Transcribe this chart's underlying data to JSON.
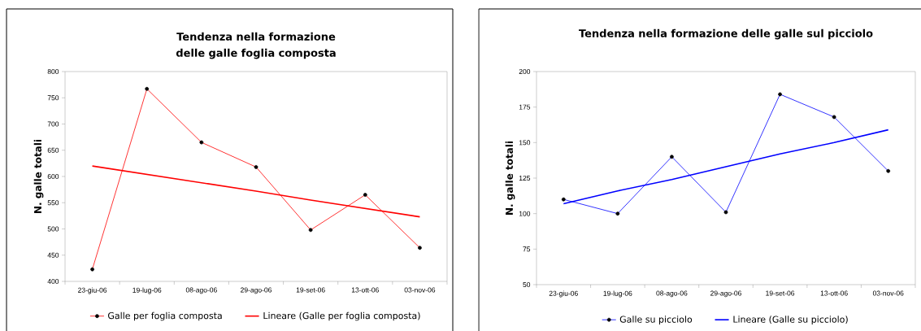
{
  "chart_data": [
    {
      "type": "line",
      "title": "Tendenza nella formazione delle galle foglia composta",
      "ylabel": "N. galle totali",
      "categories": [
        "23-giu-06",
        "19-lug-06",
        "08-ago-06",
        "29-ago-06",
        "19-set-06",
        "13-ott-06",
        "03-nov-06"
      ],
      "series": [
        {
          "name": "Galle per foglia composta",
          "color": "#ff0000",
          "marker": "circle",
          "values": [
            423,
            767,
            665,
            618,
            498,
            565,
            464
          ]
        },
        {
          "name": "Lineare (Galle per foglia composta)",
          "color": "#ff0000",
          "marker": "none",
          "values": [
            620,
            604,
            588,
            572,
            555,
            539,
            523
          ]
        }
      ],
      "ylim": [
        400,
        800
      ],
      "yticks": [
        400,
        450,
        500,
        550,
        600,
        650,
        700,
        750,
        800
      ],
      "legend": "bottom"
    },
    {
      "type": "line",
      "title": "Tendenza nella formazione delle galle sul picciolo",
      "ylabel": "N. galle totali",
      "categories": [
        "23-giu-06",
        "19-lug-06",
        "08-ago-06",
        "29-ago-06",
        "19-set-06",
        "13-ott-06",
        "03-nov-06"
      ],
      "series": [
        {
          "name": "Galle su picciolo",
          "color": "#0000ff",
          "marker": "circle",
          "values": [
            110,
            100,
            140,
            101,
            184,
            168,
            130
          ]
        },
        {
          "name": "Lineare (Galle su picciolo)",
          "color": "#0000ff",
          "marker": "none",
          "values": [
            107,
            116,
            124,
            133,
            142,
            150,
            159
          ]
        }
      ],
      "ylim": [
        50,
        200
      ],
      "yticks": [
        50,
        75,
        100,
        125,
        150,
        175,
        200
      ],
      "legend": "bottom"
    }
  ]
}
